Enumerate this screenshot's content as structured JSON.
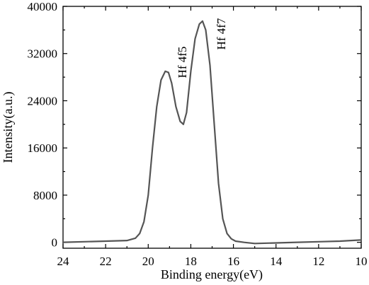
{
  "chart_data": {
    "type": "line",
    "title": "",
    "xlabel": "Binding energy(eV)",
    "ylabel": "Intensity(a.u.)",
    "xlim": [
      24,
      10
    ],
    "ylim": [
      -1000,
      40000
    ],
    "x_reversed": true,
    "grid": false,
    "legend": "none",
    "x_ticks": [
      "24",
      "22",
      "20",
      "18",
      "16",
      "14",
      "12",
      "10"
    ],
    "y_ticks": [
      "0",
      "8000",
      "16000",
      "24000",
      "32000",
      "40000"
    ],
    "annotations": [
      {
        "text": "Hf 4f5",
        "x": 18.2,
        "y": 31000,
        "rotation": -90
      },
      {
        "text": "Hf 4f7",
        "x": 16.7,
        "y": 38000,
        "rotation": -90
      }
    ],
    "series": [
      {
        "color": "#555555",
        "x": [
          24.0,
          23.0,
          22.0,
          21.0,
          20.6,
          20.4,
          20.2,
          20.0,
          19.8,
          19.6,
          19.4,
          19.2,
          19.05,
          18.9,
          18.7,
          18.5,
          18.35,
          18.2,
          18.0,
          17.8,
          17.6,
          17.45,
          17.3,
          17.1,
          16.9,
          16.7,
          16.5,
          16.3,
          16.1,
          15.9,
          15.5,
          15.0,
          14.0,
          13.0,
          12.0,
          11.0,
          10.0
        ],
        "y": [
          0,
          100,
          200,
          300,
          700,
          1500,
          3500,
          8000,
          16000,
          23000,
          27500,
          29000,
          28800,
          27000,
          23000,
          20500,
          20000,
          22000,
          29000,
          34500,
          37000,
          37500,
          36000,
          30000,
          20000,
          10000,
          4000,
          1500,
          600,
          200,
          0,
          -200,
          -100,
          0,
          100,
          200,
          400
        ]
      }
    ]
  }
}
